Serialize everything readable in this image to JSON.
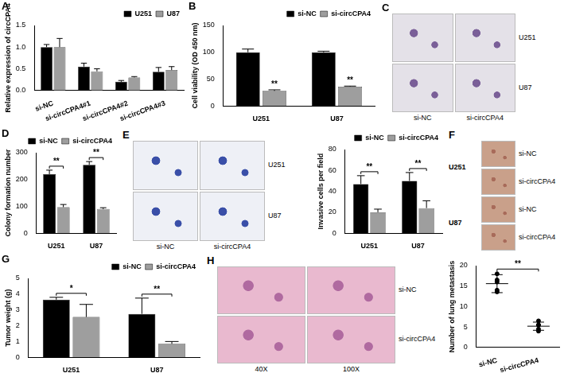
{
  "chart_data": [
    {
      "panel": "A",
      "type": "bar",
      "y_label": "Relative expression of circCPA4",
      "categories": [
        "si-NC",
        "si-circCPA4#1",
        "si-circCPA4#2",
        "si-circCPA4#3"
      ],
      "series": [
        {
          "name": "U251",
          "color": "#000000",
          "values": [
            1.0,
            0.55,
            0.2,
            0.43
          ],
          "errors": [
            0.06,
            0.08,
            0.03,
            0.1
          ]
        },
        {
          "name": "U87",
          "color": "#9e9e9e",
          "values": [
            1.0,
            0.44,
            0.3,
            0.47
          ],
          "errors": [
            0.2,
            0.06,
            0.02,
            0.08
          ]
        }
      ],
      "ylim": [
        0,
        1.5
      ],
      "yticks": [
        {
          "value": 0,
          "label": "0.0"
        },
        {
          "value": 0.5,
          "label": "0.5"
        },
        {
          "value": 1,
          "label": "1.0"
        },
        {
          "value": 1.5,
          "label": "1.5"
        }
      ],
      "grid": false,
      "legend": "top"
    },
    {
      "panel": "B",
      "type": "bar",
      "y_label": "Cell viability (OD 450 nm)",
      "categories": [
        "U251",
        "U87"
      ],
      "series": [
        {
          "name": "si-NC",
          "color": "#000000",
          "values": [
            100,
            100
          ],
          "errors": [
            6,
            2
          ]
        },
        {
          "name": "si-circCPA4",
          "color": "#9e9e9e",
          "values": [
            28,
            36
          ],
          "errors": [
            2,
            1
          ]
        }
      ],
      "annotations": [
        {
          "text": "**",
          "category": "U251",
          "series": "si-circCPA4"
        },
        {
          "text": "**",
          "category": "U87",
          "series": "si-circCPA4"
        }
      ],
      "ylim": [
        0,
        150
      ],
      "yticks": [
        0,
        50,
        100,
        150
      ],
      "grid": false,
      "legend": "top"
    },
    {
      "panel": "D",
      "type": "bar",
      "y_label": "Colony formation number",
      "categories": [
        "U251",
        "U87"
      ],
      "series": [
        {
          "name": "si-NC",
          "color": "#000000",
          "values": [
            220,
            255
          ],
          "errors": [
            15,
            12
          ]
        },
        {
          "name": "si-circCPA4",
          "color": "#9e9e9e",
          "values": [
            97,
            90
          ],
          "errors": [
            10,
            5
          ]
        }
      ],
      "annotations": [
        {
          "text": "**",
          "category": "U251"
        },
        {
          "text": "**",
          "category": "U87"
        }
      ],
      "ylim": [
        0,
        300
      ],
      "yticks": [
        0,
        100,
        200,
        300
      ],
      "grid": false,
      "legend": "top"
    },
    {
      "type": "bar",
      "y_label": "Invasive cells per field",
      "categories": [
        "U251",
        "U87"
      ],
      "series": [
        {
          "name": "si-NC",
          "color": "#000000",
          "values": [
            47,
            50
          ],
          "errors": [
            8,
            8
          ]
        },
        {
          "name": "si-circCPA4",
          "color": "#9e9e9e",
          "values": [
            20,
            24
          ],
          "errors": [
            3,
            7
          ]
        }
      ],
      "annotations": [
        {
          "text": "**",
          "category": "U251"
        },
        {
          "text": "**",
          "category": "U87"
        }
      ],
      "ylim": [
        0,
        80
      ],
      "yticks": [
        0,
        20,
        40,
        60,
        80
      ],
      "grid": false,
      "legend": "top"
    },
    {
      "panel": "G",
      "type": "bar",
      "y_label": "Tumor weight (g)",
      "categories": [
        "U251",
        "U87"
      ],
      "series": [
        {
          "name": "si-NC",
          "color": "#000000",
          "values": [
            3.65,
            2.75
          ],
          "errors": [
            0.15,
            1.0
          ]
        },
        {
          "name": "si-circCPA4",
          "color": "#9e9e9e",
          "values": [
            2.55,
            0.85
          ],
          "errors": [
            0.8,
            0.15
          ]
        }
      ],
      "annotations": [
        {
          "text": "*",
          "category": "U251"
        },
        {
          "text": "**",
          "category": "U87"
        }
      ],
      "ylim": [
        0,
        5
      ],
      "yticks": [
        0,
        1,
        2,
        3,
        4,
        5
      ],
      "grid": false,
      "legend": "top"
    },
    {
      "type": "scatter",
      "y_label": "Number of lung metastasis",
      "categories": [
        "si-NC",
        "si-circCPA4"
      ],
      "values": [
        [
          18,
          16.5,
          14,
          16,
          13.6
        ],
        [
          6.5,
          5.5,
          4.5,
          5.5,
          4
        ]
      ],
      "means": [
        15.6,
        5.2
      ],
      "errors": [
        2.2,
        1
      ],
      "color": "#000000",
      "marker": "circle",
      "annotations": [
        {
          "text": "**",
          "categories": [
            "si-NC",
            "si-circCPA4"
          ]
        }
      ],
      "ylim": [
        0,
        20
      ],
      "yticks": [
        0,
        5,
        10,
        15,
        20
      ],
      "grid": false
    }
  ],
  "images": [
    {
      "panel": "C",
      "row_labels": [
        "U251",
        "U87"
      ],
      "column_labels": [
        "si-NC",
        "si-circCPA4"
      ]
    },
    {
      "panel": "E",
      "row_labels": [
        "U251",
        "U87"
      ],
      "column_labels": [
        "si-NC",
        "si-circCPA4"
      ]
    },
    {
      "panel": "F",
      "group_labels": [
        "U251",
        "U87"
      ],
      "row_labels": [
        "si-NC",
        "si-circCPA4",
        "si-NC",
        "si-circCPA4"
      ],
      "column_labels": []
    },
    {
      "panel": "H",
      "row_labels": [
        "si-NC",
        "si-circCPA4"
      ],
      "column_labels": [
        "40X",
        "100X"
      ]
    }
  ]
}
